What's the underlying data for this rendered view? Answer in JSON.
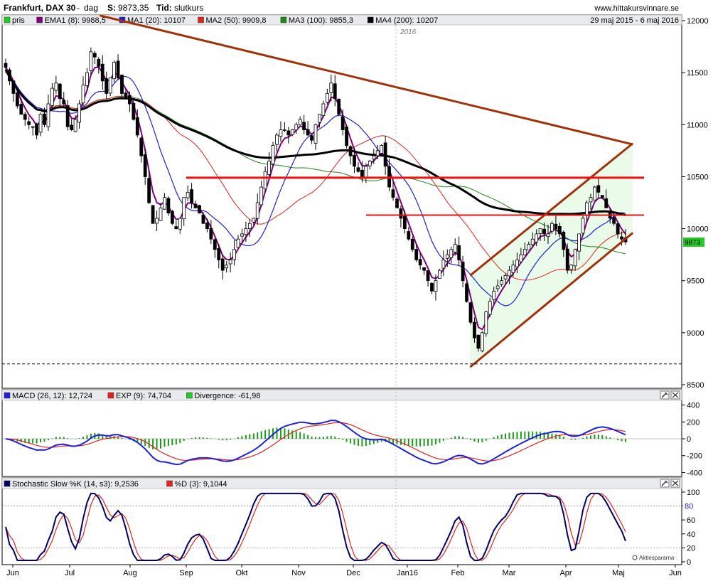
{
  "header": {
    "title": "Frankfurt, DAX 30",
    "sep": "-",
    "period": "dag",
    "price_label": "S:",
    "price_value": "9873,35",
    "time_label": "Tid:",
    "time_value": "slutkurs",
    "website": "www.hittakursvinnare.se"
  },
  "legend_main": [
    {
      "label": "pris",
      "color": "#22cc22"
    },
    {
      "label": "EMA1 (8): 9988,5",
      "color": "#800080"
    },
    {
      "label": "MA1 (20): 10107",
      "color": "#1e22d6"
    },
    {
      "label": "MA2 (50): 9909,8",
      "color": "#e0241e"
    },
    {
      "label": "MA3 (100): 9855,3",
      "color": "#1a8a1a"
    },
    {
      "label": "MA4 (200): 10207",
      "color": "#000000"
    }
  ],
  "date_range": "29 maj 2015 - 6 maj 2016",
  "year_marker": "2016",
  "price_badge": "9873",
  "watermark": "Aktiespararna",
  "legend_macd": [
    {
      "label": "MACD (26, 12): 12,724",
      "color": "#1e22d6"
    },
    {
      "label": "EXP (9): 74,704",
      "color": "#e0241e"
    },
    {
      "label": "Divergence: -61,98",
      "color": "#22cc22"
    }
  ],
  "legend_stoch": [
    {
      "label": "Stochastic Slow %K (14, s3): 9,2536",
      "color": "#000066"
    },
    {
      "label": "%D (3): 9,1044",
      "color": "#e0241e"
    }
  ],
  "x_months": [
    "Jun",
    "Jul",
    "Aug",
    "Sep",
    "Okt",
    "Nov",
    "Dec",
    "Jan16",
    "Feb",
    "Mar",
    "Apr",
    "Maj",
    "Jun"
  ],
  "y_price_ticks": [
    "12000",
    "11500",
    "11000",
    "10500",
    "10000",
    "9500",
    "9000",
    "8500"
  ],
  "y_macd_ticks": [
    "400",
    "200",
    "0",
    "-200",
    "-400"
  ],
  "y_stoch_ticks": [
    "100",
    "80",
    "60",
    "40",
    "20",
    "0"
  ],
  "stoch_ref_label": "80",
  "chart_data": [
    {
      "type": "candlestick",
      "title": "Frankfurt, DAX 30",
      "ylim": [
        8500,
        12000
      ],
      "x_range": [
        "2015-05-29",
        "2016-05-06"
      ],
      "closes": [
        11550,
        11420,
        11300,
        11180,
        11100,
        11050,
        11000,
        10980,
        10900,
        11100,
        11000,
        11200,
        11350,
        11400,
        11250,
        11200,
        10980,
        10950,
        11050,
        11200,
        11380,
        11500,
        11700,
        11650,
        11560,
        11420,
        11300,
        11450,
        11600,
        11450,
        11300,
        11250,
        11200,
        11050,
        10900,
        10700,
        10500,
        10250,
        10050,
        10100,
        10200,
        10300,
        10150,
        10050,
        10000,
        10100,
        10300,
        10350,
        10250,
        10200,
        10150,
        10050,
        10000,
        9900,
        9800,
        9700,
        9600,
        9650,
        9700,
        9800,
        9900,
        9950,
        10000,
        10050,
        10100,
        10250,
        10400,
        10550,
        10650,
        10800,
        10900,
        10950,
        10950,
        10900,
        10950,
        11000,
        11050,
        10950,
        10900,
        10850,
        11000,
        11100,
        11200,
        11300,
        11400,
        11250,
        11100,
        10950,
        10800,
        10700,
        10600,
        10550,
        10500,
        10600,
        10650,
        10700,
        10750,
        10800,
        10600,
        10400,
        10300,
        10200,
        10100,
        10000,
        9900,
        9800,
        9700,
        9650,
        9600,
        9500,
        9400,
        9500,
        9600,
        9700,
        9750,
        9800,
        9850,
        9700,
        9500,
        9300,
        9100,
        8950,
        8850,
        9000,
        9200,
        9300,
        9400,
        9450,
        9500,
        9550,
        9600,
        9650,
        9700,
        9750,
        9800,
        9850,
        9900,
        9950,
        10000,
        9950,
        9950,
        10050,
        10000,
        9950,
        9800,
        9600,
        9650,
        9800,
        9950,
        10100,
        10250,
        10300,
        10400,
        10350,
        10300,
        10200,
        10100,
        10050,
        9950,
        9900,
        9873
      ],
      "ma_values": {
        "EMA1_8": 9988.5,
        "MA1_20": 10107,
        "MA2_50": 9909.8,
        "MA3_100": 9855.3,
        "MA4_200": 10207
      },
      "horizontal_lines": [
        10490,
        10130,
        8700
      ],
      "trend_lines": [
        {
          "from": [
            "2015-07-20",
            12050
          ],
          "to": [
            "2016-05-10",
            10810
          ]
        },
        {
          "from": [
            "2016-02-10",
            8670
          ],
          "to": [
            "2016-05-10",
            9960
          ]
        },
        {
          "from": [
            "2016-02-10",
            9550
          ],
          "to": [
            "2016-05-10",
            10820
          ]
        }
      ]
    },
    {
      "type": "line",
      "title": "MACD (26, 12)",
      "ylim": [
        -430,
        430
      ],
      "series": [
        {
          "name": "MACD (26, 12)",
          "last": 12.724
        },
        {
          "name": "EXP (9)",
          "last": 74.704
        },
        {
          "name": "Divergence",
          "last": -61.98
        }
      ]
    },
    {
      "type": "line",
      "title": "Stochastic Slow %K (14, s3)",
      "ylim": [
        0,
        105
      ],
      "series": [
        {
          "name": "Stochastic Slow %K (14, s3)",
          "last": 9.2536
        },
        {
          "name": "%D (3)",
          "last": 9.1044
        }
      ]
    }
  ]
}
